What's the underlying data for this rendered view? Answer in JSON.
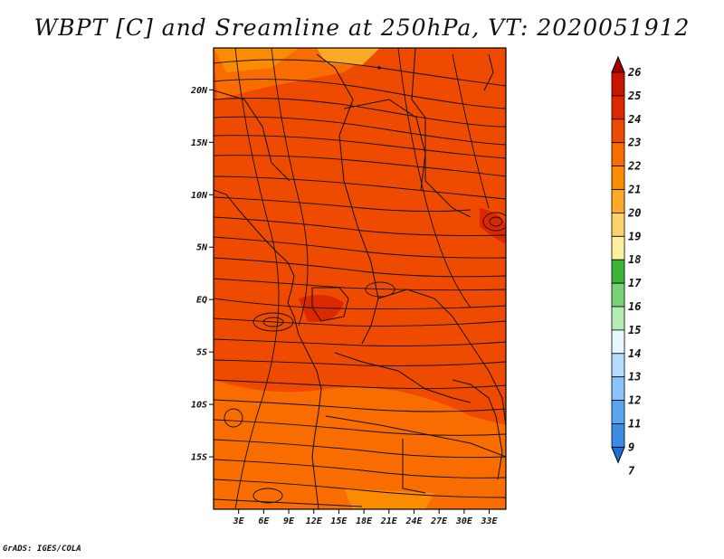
{
  "title": "WBPT [C] and Sreamline at 250hPa, VT: 2020051912",
  "credit": "GrADS: IGES/COLA",
  "map": {
    "lat_range": [
      -20,
      24
    ],
    "lon_range": [
      0,
      35
    ],
    "lat_ticks": [
      {
        "label": "20N",
        "value": 20
      },
      {
        "label": "15N",
        "value": 15
      },
      {
        "label": "10N",
        "value": 10
      },
      {
        "label": "5N",
        "value": 5
      },
      {
        "label": "EQ",
        "value": 0
      },
      {
        "label": "5S",
        "value": -5
      },
      {
        "label": "10S",
        "value": -10
      },
      {
        "label": "15S",
        "value": -15
      }
    ],
    "lon_ticks": [
      {
        "label": "3E",
        "value": 3
      },
      {
        "label": "6E",
        "value": 6
      },
      {
        "label": "9E",
        "value": 9
      },
      {
        "label": "12E",
        "value": 12
      },
      {
        "label": "15E",
        "value": 15
      },
      {
        "label": "18E",
        "value": 18
      },
      {
        "label": "21E",
        "value": 21
      },
      {
        "label": "24E",
        "value": 24
      },
      {
        "label": "27E",
        "value": 27
      },
      {
        "label": "30E",
        "value": 30
      },
      {
        "label": "33E",
        "value": 33
      }
    ]
  },
  "colorbar": {
    "levels": [
      "26",
      "25",
      "24",
      "23",
      "22",
      "21",
      "20",
      "19",
      "18",
      "17",
      "16",
      "15",
      "14",
      "13",
      "12",
      "11",
      "9",
      "7"
    ],
    "colors": [
      "#a50000",
      "#c81400",
      "#dc2800",
      "#ef4b00",
      "#f86c00",
      "#fb8c00",
      "#fbaa28",
      "#fcd26b",
      "#fdf0a0",
      "#3cb43c",
      "#78d278",
      "#b4ecb4",
      "#e6f7ff",
      "#b4dcff",
      "#8cc3fa",
      "#5aa5f0",
      "#3c8ce6",
      "#1e6edc"
    ]
  }
}
